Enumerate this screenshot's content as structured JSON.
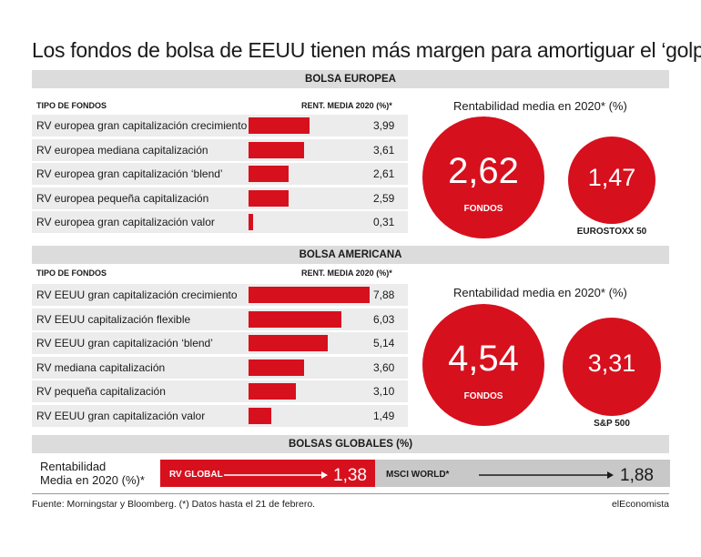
{
  "title": "Los fondos de bolsa de EEUU tienen más margen para amortiguar el ‘golpe’",
  "colors": {
    "red": "#d7101e",
    "gray": "#c8c8c8",
    "band": "#dcdcdc",
    "row": "#ececec"
  },
  "europe": {
    "section": "BOLSA EUROPEA",
    "col_type": "TIPO DE FONDOS",
    "col_rent": "RENT. MEDIA 2020 (%)*",
    "rent_heading": "Rentabilidad media en 2020* (%)",
    "funds_value": "2,62",
    "funds_label": "FONDOS",
    "index_value": "1,47",
    "index_label": "EUROSTOXX 50"
  },
  "america": {
    "section": "BOLSA AMERICANA",
    "col_type": "TIPO DE FONDOS",
    "col_rent": "RENT. MEDIA 2020 (%)*",
    "rent_heading": "Rentabilidad media en 2020* (%)",
    "funds_value": "4,54",
    "funds_label": "FONDOS",
    "index_value": "3,31",
    "index_label": "S&P 500"
  },
  "global": {
    "section": "BOLSAS GLOBALES (%)",
    "row_label_1": "Rentabilidad",
    "row_label_2": "Media en 2020 (%)*",
    "rv_label": "RV GLOBAL",
    "rv_value": "1,38",
    "msci_label": "MSCI WORLD*",
    "msci_value": "1,88"
  },
  "footer": {
    "source": "Fuente: Morningstar y Bloomberg. (*) Datos hasta el 21 de febrero.",
    "brand": "elEconomista"
  },
  "chart_data": [
    {
      "type": "bar",
      "title": "BOLSA EUROPEA",
      "categories": [
        "RV europea gran capitalización crecimiento",
        "RV europea mediana capitalización",
        "RV europea gran capitalización ‘blend’",
        "RV europea pequeña capitalización",
        "RV europea gran capitalización valor"
      ],
      "values": [
        3.99,
        3.61,
        2.61,
        2.59,
        0.31
      ],
      "value_labels": [
        "3,99",
        "3,61",
        "2,61",
        "2,59",
        "0,31"
      ],
      "xlabel": "TIPO DE FONDOS",
      "ylabel": "RENT. MEDIA 2020 (%)*",
      "ylim": [
        0,
        8
      ]
    },
    {
      "type": "bar",
      "title": "BOLSA AMERICANA",
      "categories": [
        "RV EEUU gran capitalización crecimiento",
        "RV EEUU capitalización flexible",
        "RV EEUU gran capitalización ‘blend’",
        "RV mediana capitalización",
        "RV pequeña capitalización",
        "RV EEUU gran capitalización valor"
      ],
      "values": [
        7.88,
        6.03,
        5.14,
        3.6,
        3.1,
        1.49
      ],
      "value_labels": [
        "7,88",
        "6,03",
        "5,14",
        "3,60",
        "3,10",
        "1,49"
      ],
      "xlabel": "TIPO DE FONDOS",
      "ylabel": "RENT. MEDIA 2020 (%)*",
      "ylim": [
        0,
        8
      ]
    },
    {
      "type": "bar",
      "title": "BOLSAS GLOBALES (%)",
      "categories": [
        "RV GLOBAL",
        "MSCI WORLD*"
      ],
      "values": [
        1.38,
        1.88
      ]
    }
  ]
}
